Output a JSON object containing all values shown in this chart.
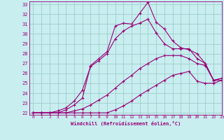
{
  "xlabel": "Windchill (Refroidissement éolien,°C)",
  "bg_color": "#c8eef0",
  "line_color": "#990077",
  "grid_color": "#a0cccc",
  "xlim": [
    -0.5,
    23
  ],
  "ylim": [
    21.8,
    33.3
  ],
  "yticks": [
    22,
    23,
    24,
    25,
    26,
    27,
    28,
    29,
    30,
    31,
    32,
    33
  ],
  "xticks": [
    0,
    1,
    2,
    3,
    4,
    5,
    6,
    7,
    8,
    9,
    10,
    11,
    12,
    13,
    14,
    15,
    16,
    17,
    18,
    19,
    20,
    21,
    22,
    23
  ],
  "curves": [
    {
      "x": [
        0,
        1,
        2,
        3,
        4,
        5,
        6,
        7,
        8,
        9,
        10,
        11,
        12,
        13,
        14,
        15,
        16,
        17,
        18,
        19,
        20,
        21,
        22,
        23
      ],
      "y": [
        22,
        22,
        22,
        22,
        22,
        22,
        22,
        22,
        22,
        22,
        22.3,
        22.7,
        23.2,
        23.8,
        24.3,
        24.8,
        25.3,
        25.8,
        26.0,
        26.2,
        25.2,
        25.0,
        25.0,
        25.3
      ]
    },
    {
      "x": [
        0,
        1,
        2,
        3,
        4,
        5,
        6,
        7,
        8,
        9,
        10,
        11,
        12,
        13,
        14,
        15,
        16,
        17,
        18,
        19,
        20,
        21,
        22,
        23
      ],
      "y": [
        22,
        22,
        22,
        22,
        22,
        22.2,
        22.4,
        22.8,
        23.3,
        23.8,
        24.5,
        25.2,
        25.8,
        26.5,
        27.0,
        27.5,
        27.8,
        27.8,
        27.8,
        27.5,
        27.0,
        26.8,
        25.3,
        25.3
      ]
    },
    {
      "x": [
        0,
        1,
        2,
        3,
        4,
        5,
        6,
        7,
        8,
        9,
        10,
        11,
        12,
        13,
        14,
        15,
        16,
        17,
        18,
        19,
        20,
        21,
        22,
        23
      ],
      "y": [
        22,
        22,
        22,
        22,
        22.3,
        22.8,
        23.5,
        26.8,
        27.5,
        28.2,
        30.8,
        31.1,
        31.0,
        32.1,
        33.2,
        31.2,
        30.5,
        29.3,
        28.6,
        28.4,
        28.0,
        27.0,
        25.3,
        25.5
      ]
    },
    {
      "x": [
        0,
        1,
        2,
        3,
        4,
        5,
        6,
        7,
        8,
        9,
        10,
        11,
        12,
        13,
        14,
        15,
        16,
        17,
        18,
        19,
        20,
        21,
        22,
        23
      ],
      "y": [
        22,
        22,
        22,
        22.2,
        22.5,
        23.2,
        24.3,
        26.7,
        27.3,
        28.0,
        29.5,
        30.3,
        30.8,
        31.1,
        31.5,
        30.1,
        29.0,
        28.5,
        28.5,
        28.5,
        27.5,
        27.0,
        25.3,
        25.5
      ]
    }
  ]
}
